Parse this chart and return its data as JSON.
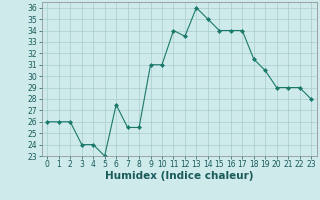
{
  "x": [
    0,
    1,
    2,
    3,
    4,
    5,
    6,
    7,
    8,
    9,
    10,
    11,
    12,
    13,
    14,
    15,
    16,
    17,
    18,
    19,
    20,
    21,
    22,
    23
  ],
  "y": [
    26,
    26,
    26,
    24,
    24,
    23,
    27.5,
    25.5,
    25.5,
    31,
    31,
    34,
    33.5,
    36,
    35,
    34,
    34,
    34,
    31.5,
    30.5,
    29,
    29,
    29,
    28
  ],
  "line_color": "#1a7a6a",
  "marker": "D",
  "marker_size": 2,
  "bg_color": "#ceeaea",
  "grid_color": "#aacccc",
  "xlabel": "Humidex (Indice chaleur)",
  "xlim": [
    -0.5,
    23.5
  ],
  "ylim": [
    23,
    36.5
  ],
  "yticks": [
    23,
    24,
    25,
    26,
    27,
    28,
    29,
    30,
    31,
    32,
    33,
    34,
    35,
    36
  ],
  "xticks": [
    0,
    1,
    2,
    3,
    4,
    5,
    6,
    7,
    8,
    9,
    10,
    11,
    12,
    13,
    14,
    15,
    16,
    17,
    18,
    19,
    20,
    21,
    22,
    23
  ],
  "tick_fontsize": 5.5,
  "label_fontsize": 7.5
}
